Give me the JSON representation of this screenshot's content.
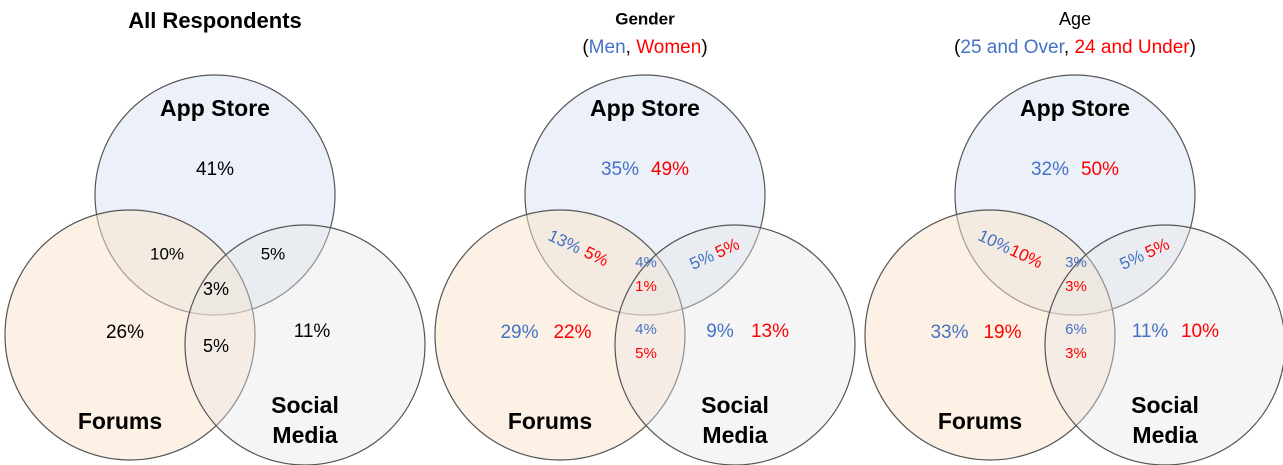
{
  "panels": [
    {
      "title": "All Respondents",
      "subtitle": [],
      "sets": {
        "app": [
          "App Store"
        ],
        "forums": [
          "Forums"
        ],
        "social": [
          "Social",
          "Media"
        ]
      },
      "colors": [
        "#000000"
      ],
      "regions": {
        "app": [
          "41%"
        ],
        "app_forums": [
          "10%"
        ],
        "app_social": [
          "5%"
        ],
        "all": [
          "3%"
        ],
        "forums": [
          "26%"
        ],
        "forums_social": [
          "5%"
        ],
        "social": [
          "11%"
        ]
      }
    },
    {
      "title": "Gender",
      "subtitle": [
        {
          "text": "(",
          "color": "#000000"
        },
        {
          "text": "Men",
          "color": "#4472c4"
        },
        {
          "text": ", ",
          "color": "#000000"
        },
        {
          "text": "Women",
          "color": "#ff0000"
        },
        {
          "text": ")",
          "color": "#000000"
        }
      ],
      "sets": {
        "app": [
          "App Store"
        ],
        "forums": [
          "Forums"
        ],
        "social": [
          "Social",
          "Media"
        ]
      },
      "colors": [
        "#4472c4",
        "#ff0000"
      ],
      "regions": {
        "app": [
          "35%",
          "49%"
        ],
        "app_forums": [
          "13%",
          "5%"
        ],
        "app_social": [
          "5%",
          "5%"
        ],
        "all": [
          "4%",
          "1%"
        ],
        "forums": [
          "29%",
          "22%"
        ],
        "forums_social": [
          "4%",
          "5%"
        ],
        "social": [
          "9%",
          "13%"
        ]
      }
    },
    {
      "title": "Age",
      "subtitle": [
        {
          "text": "(",
          "color": "#000000"
        },
        {
          "text": "25 and Over",
          "color": "#4472c4"
        },
        {
          "text": ", ",
          "color": "#000000"
        },
        {
          "text": "24 and Under",
          "color": "#ff0000"
        },
        {
          "text": ")",
          "color": "#000000"
        }
      ],
      "sets": {
        "app": [
          "App Store"
        ],
        "forums": [
          "Forums"
        ],
        "social": [
          "Social",
          "Media"
        ]
      },
      "colors": [
        "#4472c4",
        "#ff0000"
      ],
      "regions": {
        "app": [
          "32%",
          "50%"
        ],
        "app_forums": [
          "10%",
          "10%"
        ],
        "app_social": [
          "5%",
          "5%"
        ],
        "all": [
          "3%",
          "3%"
        ],
        "forums": [
          "33%",
          "19%"
        ],
        "forums_social": [
          "6%",
          "3%"
        ],
        "social": [
          "11%",
          "10%"
        ]
      }
    }
  ]
}
